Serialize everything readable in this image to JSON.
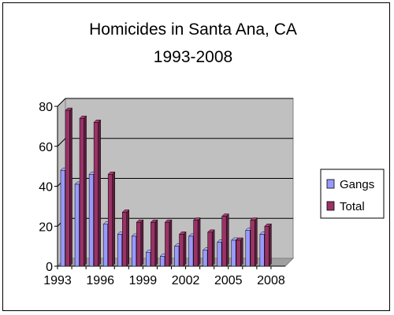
{
  "chart_data": {
    "type": "bar",
    "title": "Homicides in Santa Ana, CA",
    "subtitle": "1993-2008",
    "xlabel": "",
    "ylabel": "",
    "ylim": [
      0,
      80
    ],
    "yticks": [
      "0",
      "20",
      "40",
      "60",
      "80"
    ],
    "categories": [
      "1993",
      "1994",
      "1995",
      "1996",
      "1997",
      "1998",
      "1999",
      "2000",
      "2001",
      "2002",
      "2003",
      "2004",
      "2005",
      "2006",
      "2007",
      "2008"
    ],
    "xtick_labels": [
      "1993",
      "1996",
      "1999",
      "2002",
      "2005",
      "2008"
    ],
    "grid": true,
    "legend_position": "right",
    "series": [
      {
        "name": "Gangs",
        "color": "#9999ff",
        "values": [
          48,
          41,
          46,
          21,
          16,
          15,
          7,
          5,
          10,
          15,
          8,
          12,
          13,
          18,
          16,
          null
        ]
      },
      {
        "name": "Total",
        "color": "#993366",
        "values": [
          78,
          74,
          72,
          46,
          27,
          22,
          22,
          22,
          16,
          23,
          17,
          25,
          13,
          23,
          20,
          null
        ]
      }
    ],
    "plot_background": "#c0c0c0"
  }
}
